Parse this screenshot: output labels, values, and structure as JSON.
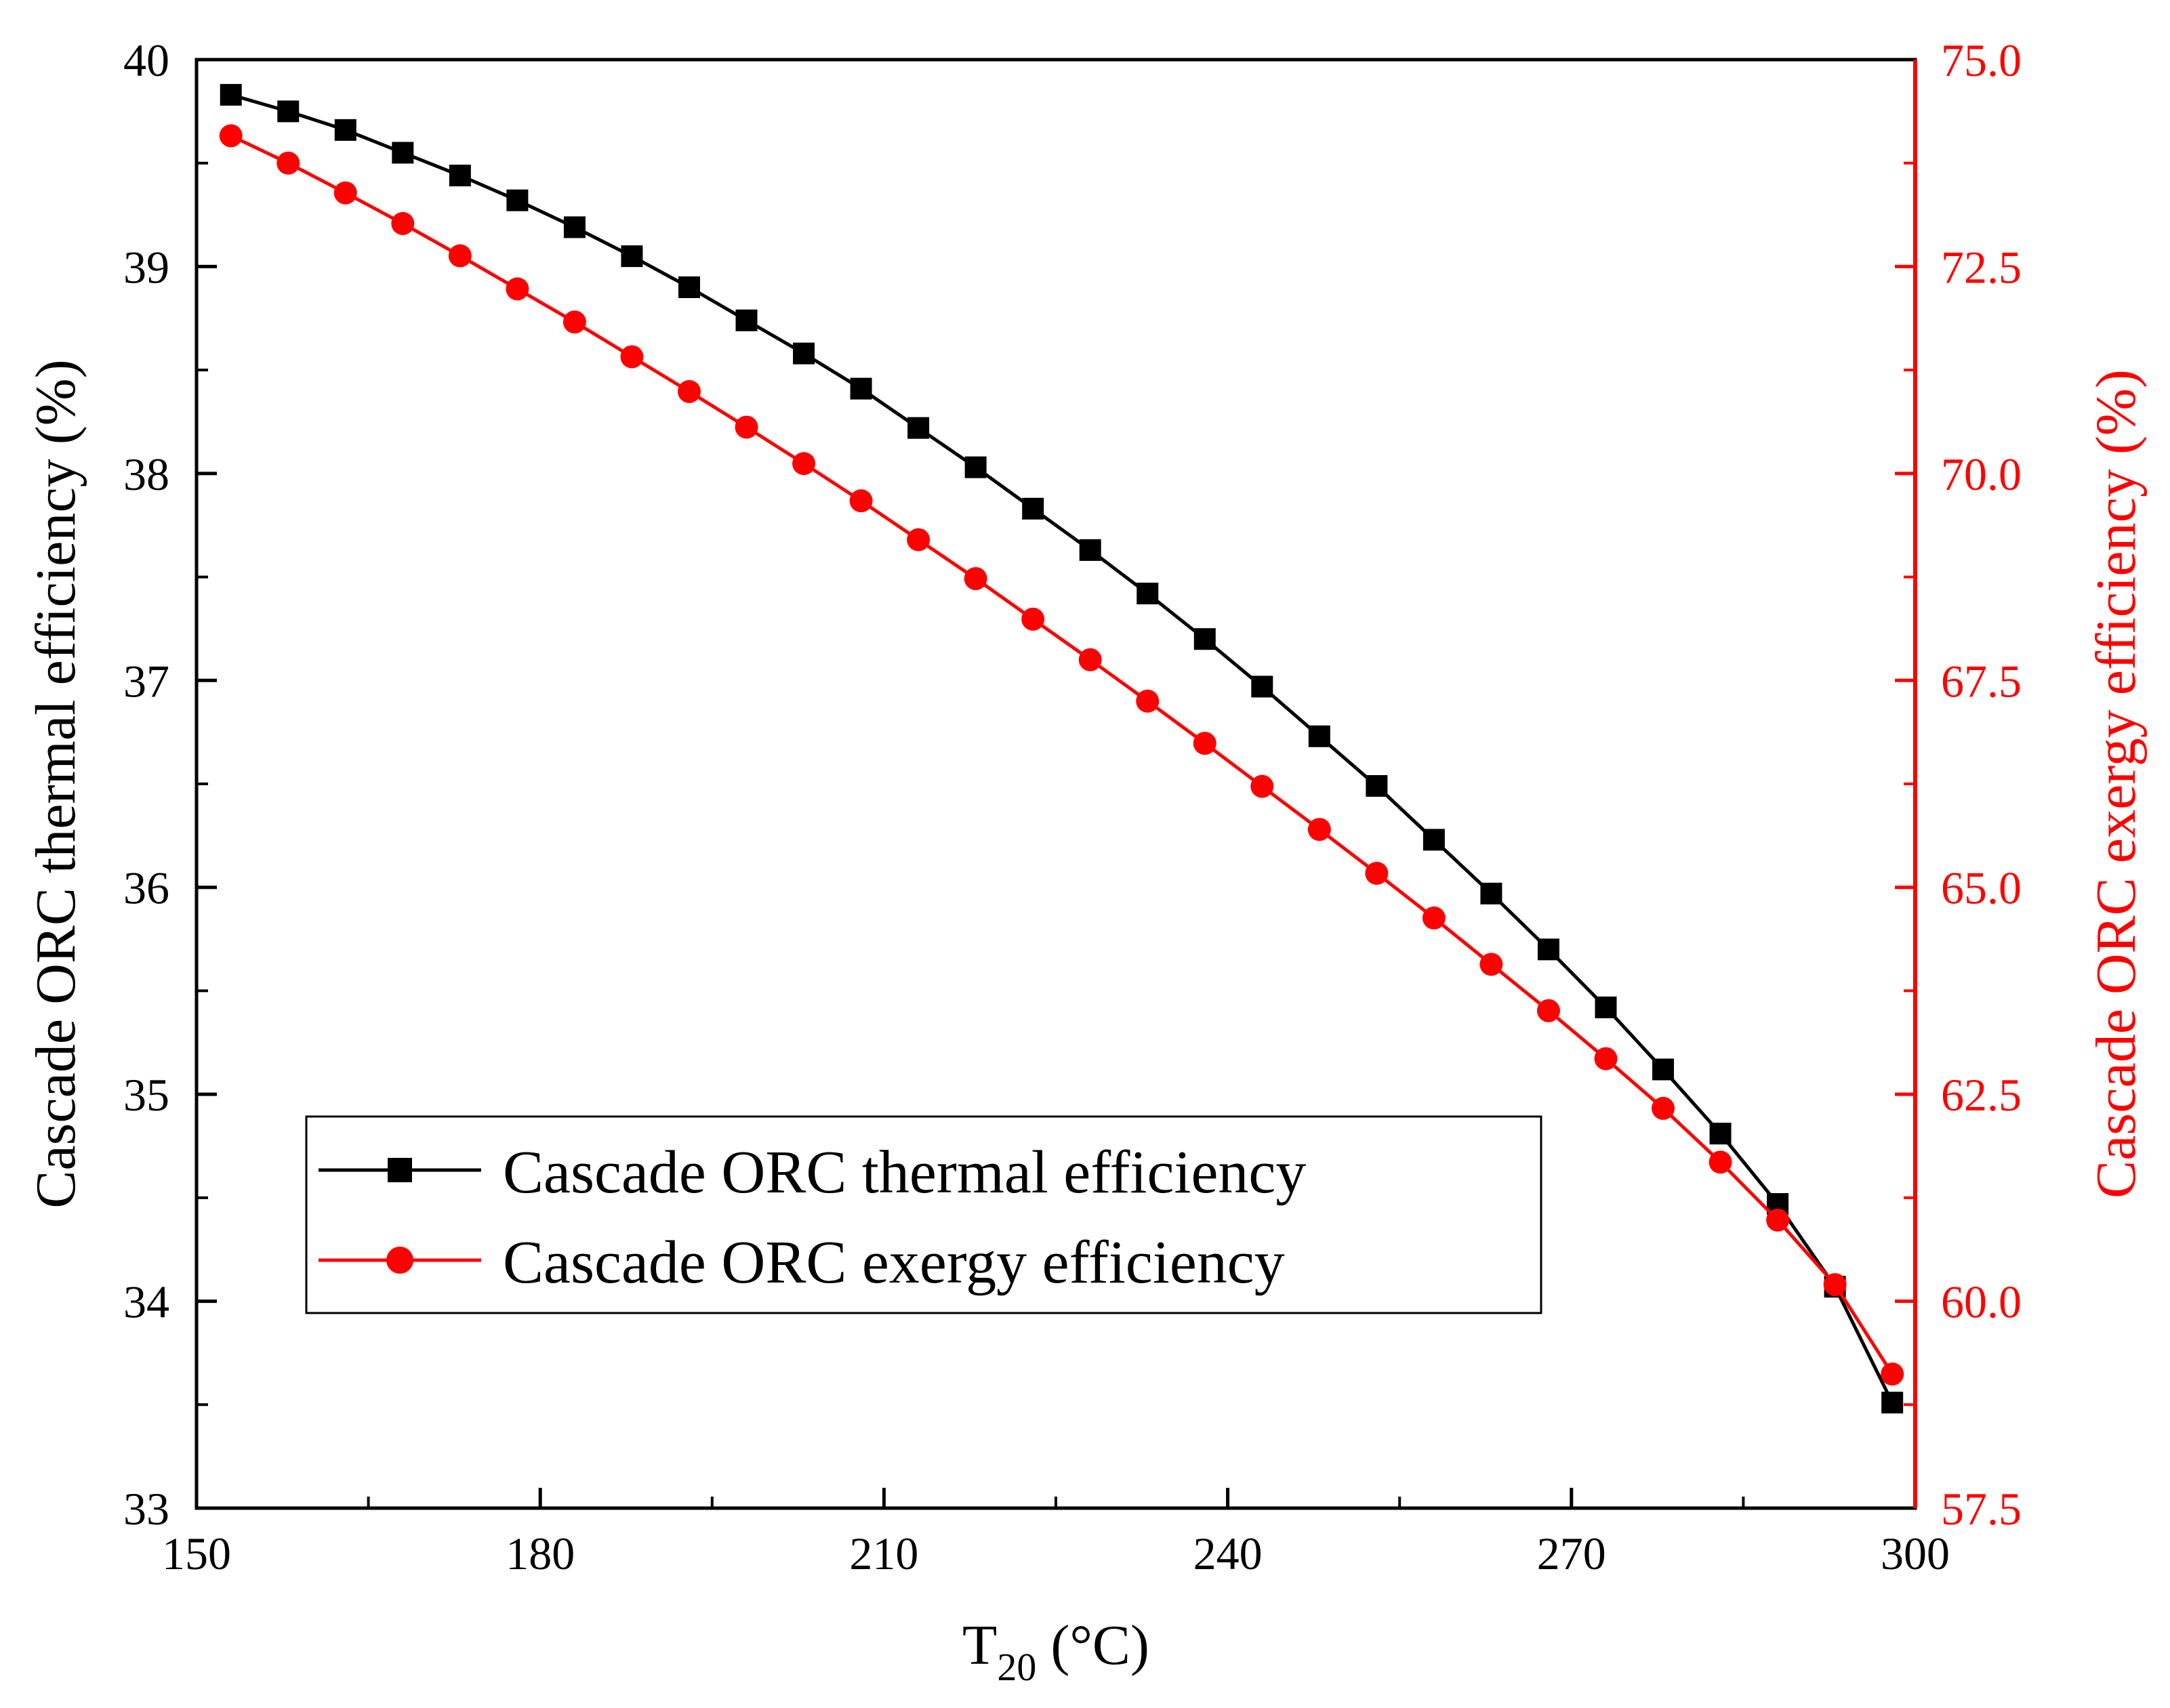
{
  "chart_data": {
    "type": "line",
    "xlabel_main": "T",
    "xlabel_sub": "20",
    "xlabel_unit": " (°C)",
    "ylabel_left": "Cascade ORC thermal efficiency (%)",
    "ylabel_right": "Cascade ORC exergy efficiency (%)",
    "xlim": [
      150,
      300
    ],
    "ylim_left": [
      33,
      40
    ],
    "ylim_right": [
      57.5,
      75.0
    ],
    "x_ticks": [
      "150",
      "180",
      "210",
      "240",
      "270",
      "300"
    ],
    "y_left_ticks": [
      "33",
      "34",
      "35",
      "36",
      "37",
      "38",
      "39",
      "40"
    ],
    "y_right_ticks": [
      "57.5",
      "60.0",
      "62.5",
      "65.0",
      "67.5",
      "70.0",
      "72.5",
      "75.0"
    ],
    "legend_position": "lower-left",
    "x": [
      153,
      158,
      163,
      168,
      173,
      178,
      183,
      188,
      193,
      198,
      203,
      208,
      213,
      218,
      223,
      228,
      233,
      238,
      243,
      248,
      253,
      258,
      263,
      268,
      273,
      278,
      283,
      288,
      293,
      298
    ],
    "series": [
      {
        "name": "Cascade ORC thermal efficiency",
        "axis": "left",
        "marker": "square",
        "color": "#000000",
        "values": [
          39.83,
          39.75,
          39.66,
          39.55,
          39.44,
          39.32,
          39.19,
          39.05,
          38.9,
          38.74,
          38.58,
          38.41,
          38.22,
          38.03,
          37.83,
          37.63,
          37.42,
          37.2,
          36.97,
          36.73,
          36.49,
          36.23,
          35.97,
          35.7,
          35.42,
          35.12,
          34.81,
          34.47,
          34.07,
          33.51
        ]
      },
      {
        "name": "Cascade ORC exergy efficiency",
        "axis": "right",
        "marker": "circle",
        "color": "#ff0000",
        "values": [
          74.08,
          73.75,
          73.39,
          73.02,
          72.63,
          72.23,
          71.83,
          71.41,
          70.99,
          70.56,
          70.12,
          69.67,
          69.2,
          68.73,
          68.24,
          67.75,
          67.25,
          66.74,
          66.22,
          65.7,
          65.17,
          64.63,
          64.07,
          63.51,
          62.93,
          62.33,
          61.68,
          60.98,
          60.2,
          59.12
        ]
      }
    ]
  }
}
